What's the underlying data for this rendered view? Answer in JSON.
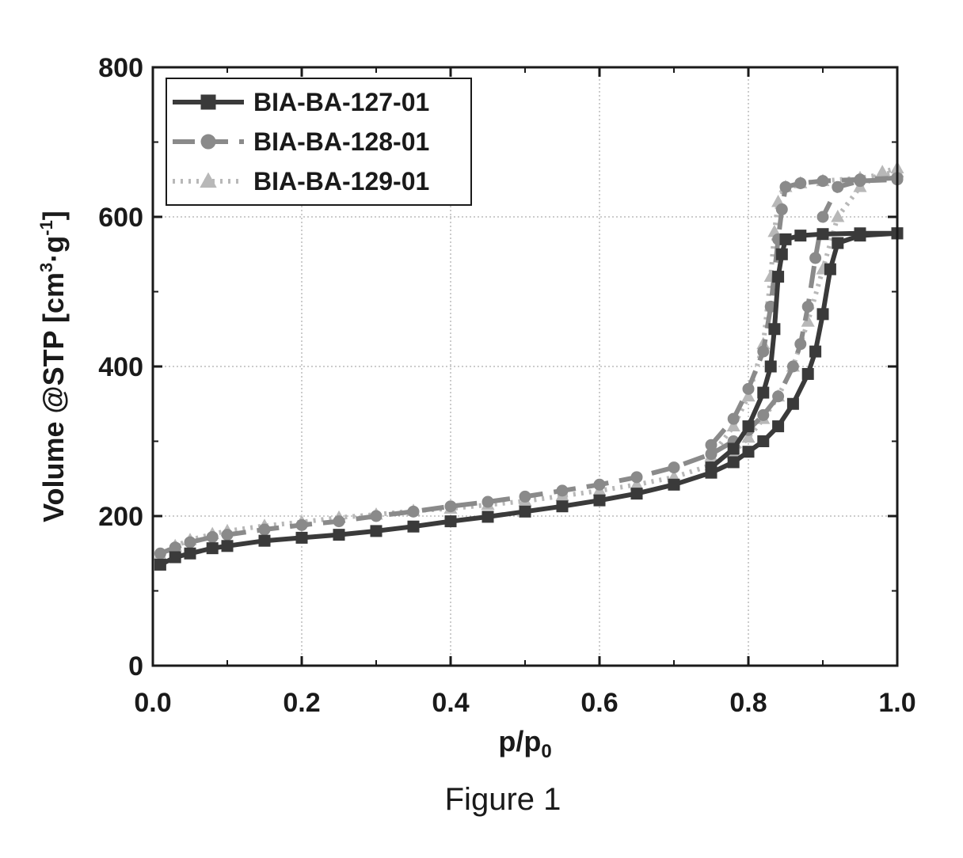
{
  "caption": "Figure 1",
  "chart_data": {
    "type": "line",
    "xlabel_base": "p/p",
    "xlabel_sub": "0",
    "ylabel_main": "Volume @STP [cm",
    "ylabel_sup1": "3",
    "ylabel_mid": "·g",
    "ylabel_sup2": "-1",
    "ylabel_end": "]",
    "xlim": [
      0,
      1.0
    ],
    "ylim": [
      0,
      800
    ],
    "xticks": [
      "0.0",
      "0.2",
      "0.4",
      "0.6",
      "0.8",
      "1.0"
    ],
    "yticks": [
      "0",
      "200",
      "400",
      "600",
      "800"
    ],
    "grid": true,
    "legend_position": "top-left",
    "series": [
      {
        "name": "BIA-BA-127-01",
        "marker": "square",
        "line": "solid",
        "color": "#3a3a3a",
        "adsorption": [
          [
            0.01,
            135
          ],
          [
            0.03,
            145
          ],
          [
            0.05,
            150
          ],
          [
            0.08,
            157
          ],
          [
            0.1,
            160
          ],
          [
            0.15,
            167
          ],
          [
            0.2,
            171
          ],
          [
            0.25,
            175
          ],
          [
            0.3,
            180
          ],
          [
            0.35,
            186
          ],
          [
            0.4,
            193
          ],
          [
            0.45,
            199
          ],
          [
            0.5,
            206
          ],
          [
            0.55,
            213
          ],
          [
            0.6,
            221
          ],
          [
            0.65,
            230
          ],
          [
            0.7,
            242
          ],
          [
            0.75,
            258
          ],
          [
            0.78,
            272
          ],
          [
            0.8,
            286
          ],
          [
            0.82,
            300
          ],
          [
            0.84,
            320
          ],
          [
            0.86,
            350
          ],
          [
            0.88,
            390
          ],
          [
            0.89,
            420
          ],
          [
            0.9,
            470
          ],
          [
            0.91,
            530
          ],
          [
            0.92,
            565
          ],
          [
            0.95,
            575
          ],
          [
            1.0,
            578
          ]
        ],
        "desorption": [
          [
            1.0,
            578
          ],
          [
            0.95,
            578
          ],
          [
            0.9,
            577
          ],
          [
            0.87,
            575
          ],
          [
            0.85,
            570
          ],
          [
            0.845,
            550
          ],
          [
            0.84,
            520
          ],
          [
            0.835,
            450
          ],
          [
            0.83,
            400
          ],
          [
            0.82,
            365
          ],
          [
            0.8,
            320
          ],
          [
            0.78,
            290
          ],
          [
            0.75,
            265
          ]
        ]
      },
      {
        "name": "BIA-BA-128-01",
        "marker": "circle",
        "line": "dash",
        "color": "#8a8a8a",
        "adsorption": [
          [
            0.01,
            150
          ],
          [
            0.03,
            158
          ],
          [
            0.05,
            165
          ],
          [
            0.08,
            172
          ],
          [
            0.1,
            175
          ],
          [
            0.15,
            182
          ],
          [
            0.2,
            188
          ],
          [
            0.25,
            193
          ],
          [
            0.3,
            200
          ],
          [
            0.35,
            206
          ],
          [
            0.4,
            213
          ],
          [
            0.45,
            219
          ],
          [
            0.5,
            226
          ],
          [
            0.55,
            234
          ],
          [
            0.6,
            242
          ],
          [
            0.65,
            252
          ],
          [
            0.7,
            265
          ],
          [
            0.75,
            283
          ],
          [
            0.78,
            300
          ],
          [
            0.8,
            315
          ],
          [
            0.82,
            335
          ],
          [
            0.84,
            360
          ],
          [
            0.86,
            400
          ],
          [
            0.87,
            430
          ],
          [
            0.88,
            480
          ],
          [
            0.89,
            545
          ],
          [
            0.9,
            600
          ],
          [
            0.92,
            640
          ],
          [
            0.95,
            648
          ],
          [
            1.0,
            650
          ]
        ],
        "desorption": [
          [
            1.0,
            652
          ],
          [
            0.95,
            650
          ],
          [
            0.9,
            648
          ],
          [
            0.87,
            645
          ],
          [
            0.85,
            640
          ],
          [
            0.845,
            610
          ],
          [
            0.84,
            570
          ],
          [
            0.83,
            480
          ],
          [
            0.82,
            420
          ],
          [
            0.8,
            370
          ],
          [
            0.78,
            330
          ],
          [
            0.75,
            295
          ]
        ]
      },
      {
        "name": "BIA-BA-129-01",
        "marker": "triangle",
        "line": "dot",
        "color": "#b8b8b8",
        "adsorption": [
          [
            0.01,
            148
          ],
          [
            0.03,
            160
          ],
          [
            0.05,
            168
          ],
          [
            0.08,
            176
          ],
          [
            0.1,
            180
          ],
          [
            0.15,
            187
          ],
          [
            0.2,
            192
          ],
          [
            0.25,
            198
          ],
          [
            0.3,
            202
          ],
          [
            0.35,
            207
          ],
          [
            0.4,
            210
          ],
          [
            0.45,
            215
          ],
          [
            0.5,
            220
          ],
          [
            0.55,
            227
          ],
          [
            0.6,
            234
          ],
          [
            0.65,
            242
          ],
          [
            0.7,
            252
          ],
          [
            0.75,
            268
          ],
          [
            0.78,
            285
          ],
          [
            0.8,
            305
          ],
          [
            0.82,
            330
          ],
          [
            0.84,
            360
          ],
          [
            0.86,
            400
          ],
          [
            0.88,
            460
          ],
          [
            0.9,
            530
          ],
          [
            0.92,
            600
          ],
          [
            0.95,
            640
          ],
          [
            0.98,
            660
          ],
          [
            1.0,
            665
          ]
        ],
        "desorption": [
          [
            1.0,
            660
          ],
          [
            0.95,
            652
          ],
          [
            0.9,
            648
          ],
          [
            0.87,
            645
          ],
          [
            0.85,
            640
          ],
          [
            0.84,
            620
          ],
          [
            0.835,
            580
          ],
          [
            0.83,
            520
          ],
          [
            0.82,
            430
          ],
          [
            0.8,
            360
          ],
          [
            0.78,
            320
          ],
          [
            0.75,
            280
          ]
        ]
      }
    ]
  }
}
